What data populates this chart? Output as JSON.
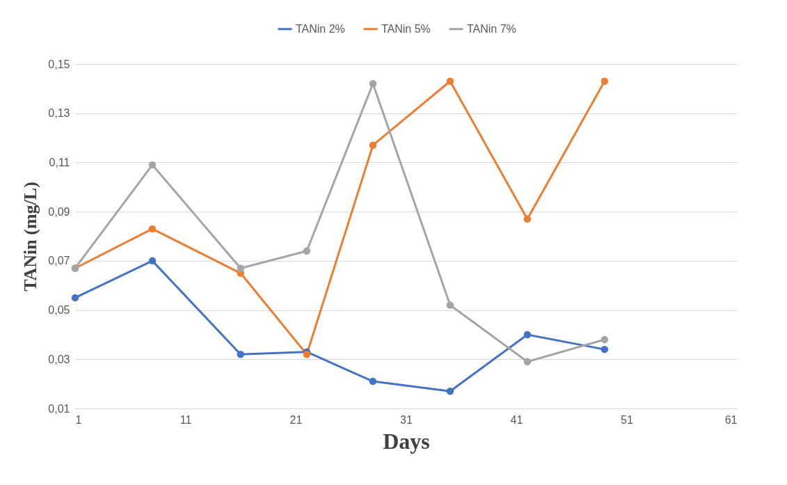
{
  "chart_data": {
    "type": "line",
    "xlabel": "Days",
    "ylabel": "TANin (mg/L)",
    "x": [
      1,
      8,
      16,
      22,
      28,
      35,
      42,
      49
    ],
    "series": [
      {
        "name": "TANin 2%",
        "color": "#4472c4",
        "values": [
          0.055,
          0.07,
          0.032,
          0.033,
          0.021,
          0.017,
          0.04,
          0.034
        ]
      },
      {
        "name": "TANin 5%",
        "color": "#ed7d31",
        "values": [
          0.067,
          0.083,
          0.065,
          0.032,
          0.117,
          0.143,
          0.087,
          0.143
        ]
      },
      {
        "name": "TANin 7%",
        "color": "#a5a5a5",
        "values": [
          0.067,
          0.109,
          0.067,
          0.074,
          0.142,
          0.052,
          0.029,
          0.038
        ]
      }
    ],
    "xlim": [
      1,
      61
    ],
    "xticks": [
      1,
      11,
      21,
      31,
      41,
      51,
      61
    ],
    "ylim": [
      0.01,
      0.15
    ],
    "yticks": [
      {
        "value": 0.01,
        "label": "0,01"
      },
      {
        "value": 0.03,
        "label": "0,03"
      },
      {
        "value": 0.05,
        "label": "0,05"
      },
      {
        "value": 0.07,
        "label": "0,07"
      },
      {
        "value": 0.09,
        "label": "0,09"
      },
      {
        "value": 0.11,
        "label": "0,11"
      },
      {
        "value": 0.13,
        "label": "0,13"
      },
      {
        "value": 0.15,
        "label": "0,15"
      }
    ],
    "grid": "y",
    "legend": "top",
    "marker": "circle",
    "line_style": "solid"
  }
}
